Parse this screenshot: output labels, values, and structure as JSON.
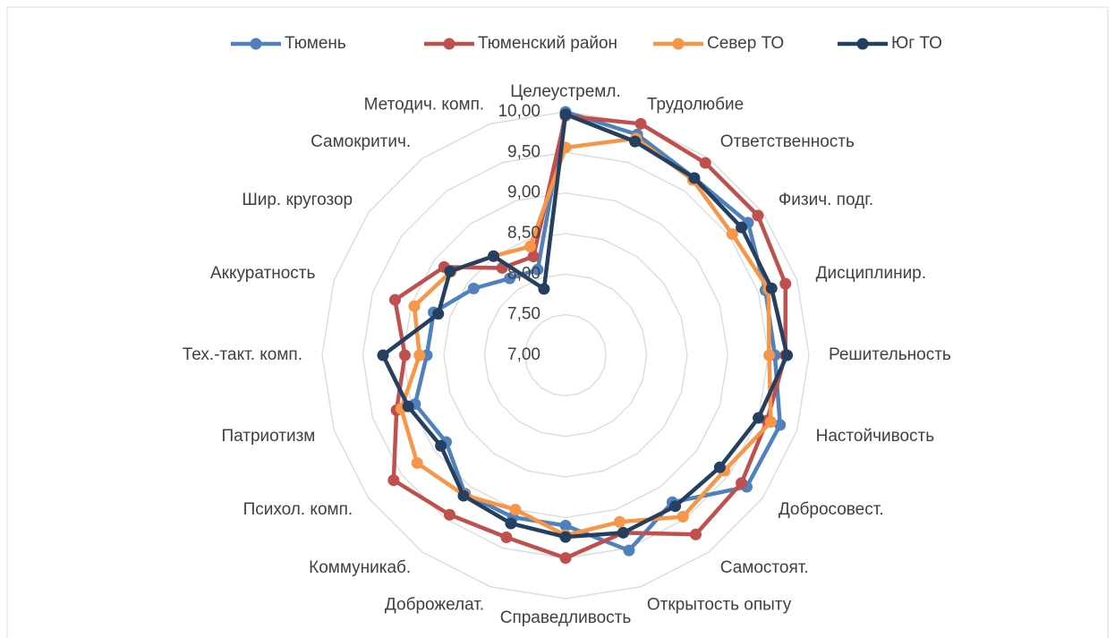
{
  "chart_data": {
    "type": "radar",
    "categories": [
      "Целеустремл.",
      "Трудолюбие",
      "Ответственность",
      "Физич. подг.",
      "Дисциплинир.",
      "Решительность",
      "Настойчивость",
      "Добросовест.",
      "Самостоят.",
      "Открытость опыту",
      "Справедливость",
      "Доброжелат.",
      "Коммуникаб.",
      "Психол. комп.",
      "Патриотизм",
      "Тех.-такт. комп.",
      "Аккуратность",
      "Шир. кругозор",
      "Самокритич.",
      "Методич. комп."
    ],
    "ylim": [
      7,
      10
    ],
    "yticks": [
      {
        "value": 7,
        "label": "7,00"
      },
      {
        "value": 7.5,
        "label": "7,50"
      },
      {
        "value": 8,
        "label": "8,00"
      },
      {
        "value": 8.5,
        "label": "8,50"
      },
      {
        "value": 9,
        "label": "9,00"
      },
      {
        "value": 9.5,
        "label": "9,50"
      },
      {
        "value": 10,
        "label": "10,00"
      }
    ],
    "grid": true,
    "legend": "top",
    "series": [
      {
        "name": "Тюмень",
        "color": "#4f81bd",
        "values": [
          10.0,
          9.86,
          9.7,
          9.78,
          9.59,
          9.58,
          9.78,
          9.76,
          9.24,
          9.53,
          9.1,
          9.1,
          9.11,
          8.82,
          8.95,
          8.71,
          8.71,
          8.4,
          8.17,
          8.11
        ]
      },
      {
        "name": "Тюменский район",
        "color": "#c0504d",
        "values": [
          9.95,
          10.0,
          9.93,
          9.93,
          9.85,
          9.71,
          9.61,
          9.68,
          9.73,
          9.3,
          9.5,
          9.36,
          9.43,
          9.62,
          9.19,
          8.98,
          9.21,
          8.85,
          8.33,
          8.28
        ]
      },
      {
        "name": "Север ТО",
        "color": "#f79646",
        "values": [
          9.56,
          9.81,
          9.67,
          9.54,
          9.63,
          9.51,
          9.66,
          9.42,
          9.46,
          9.16,
          9.22,
          9.0,
          9.13,
          9.26,
          9.13,
          8.8,
          8.96,
          8.75,
          8.51,
          8.41
        ]
      },
      {
        "name": "Юг ТО",
        "color": "#243f60",
        "values": [
          9.97,
          9.77,
          9.7,
          9.68,
          9.67,
          9.73,
          9.5,
          9.35,
          9.3,
          9.3,
          9.24,
          9.18,
          9.14,
          8.9,
          9.04,
          9.25,
          8.65,
          8.76,
          8.51,
          7.86
        ]
      }
    ]
  }
}
